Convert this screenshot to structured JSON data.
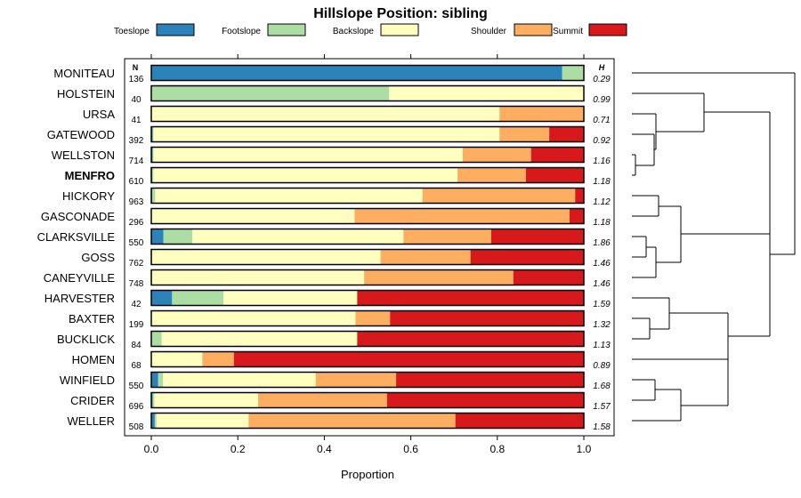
{
  "chart_data": {
    "type": "bar",
    "stacked": true,
    "orientation": "horizontal",
    "title": "Hillslope Position: sibling",
    "xlabel": "Proportion",
    "xlim": [
      0,
      1
    ],
    "xticks": [
      "0.0",
      "0.2",
      "0.4",
      "0.6",
      "0.8",
      "1.0"
    ],
    "xtick_values": [
      0,
      0.2,
      0.4,
      0.6,
      0.8,
      1.0
    ],
    "n_header": "N",
    "h_header": "H",
    "legend": [
      {
        "name": "Toeslope",
        "color": "#2b83ba"
      },
      {
        "name": "Footslope",
        "color": "#abdda4"
      },
      {
        "name": "Backslope",
        "color": "#ffffbf"
      },
      {
        "name": "Shoulder",
        "color": "#fdae61"
      },
      {
        "name": "Summit",
        "color": "#d7191c"
      }
    ],
    "rows": [
      {
        "label": "MONITEAU",
        "n": "136",
        "h": "0.29",
        "bold": false,
        "values": [
          0.95,
          0.05,
          0,
          0,
          0
        ]
      },
      {
        "label": "HOLSTEIN",
        "n": "40",
        "h": "0.99",
        "bold": false,
        "values": [
          0,
          0.55,
          0.45,
          0,
          0
        ]
      },
      {
        "label": "URSA",
        "n": "41",
        "h": "0.71",
        "bold": false,
        "values": [
          0,
          0,
          0.805,
          0.195,
          0
        ]
      },
      {
        "label": "GATEWOOD",
        "n": "392",
        "h": "0.92",
        "bold": false,
        "values": [
          0.003,
          0.002,
          0.8,
          0.115,
          0.08
        ]
      },
      {
        "label": "WELLSTON",
        "n": "714",
        "h": "1.16",
        "bold": false,
        "values": [
          0.003,
          0.002,
          0.715,
          0.158,
          0.122
        ]
      },
      {
        "label": "MENFRO",
        "n": "610",
        "h": "1.18",
        "bold": true,
        "values": [
          0.002,
          0.003,
          0.703,
          0.158,
          0.134
        ]
      },
      {
        "label": "HICKORY",
        "n": "963",
        "h": "1.12",
        "bold": false,
        "values": [
          0.002,
          0.007,
          0.618,
          0.353,
          0.02
        ]
      },
      {
        "label": "GASCONADE",
        "n": "296",
        "h": "1.18",
        "bold": false,
        "values": [
          0,
          0,
          0.47,
          0.497,
          0.033
        ]
      },
      {
        "label": "CLARKSVILLE",
        "n": "550",
        "h": "1.86",
        "bold": false,
        "values": [
          0.028,
          0.067,
          0.488,
          0.203,
          0.214
        ]
      },
      {
        "label": "GOSS",
        "n": "762",
        "h": "1.46",
        "bold": false,
        "values": [
          0,
          0.002,
          0.528,
          0.208,
          0.262
        ]
      },
      {
        "label": "CANEYVILLE",
        "n": "748",
        "h": "1.46",
        "bold": false,
        "values": [
          0,
          0.002,
          0.49,
          0.345,
          0.163
        ]
      },
      {
        "label": "HARVESTER",
        "n": "42",
        "h": "1.59",
        "bold": false,
        "values": [
          0.048,
          0.119,
          0.309,
          0,
          0.524
        ]
      },
      {
        "label": "BAXTER",
        "n": "199",
        "h": "1.32",
        "bold": false,
        "values": [
          0,
          0,
          0.472,
          0.08,
          0.448
        ]
      },
      {
        "label": "BUCKLICK",
        "n": "84",
        "h": "1.13",
        "bold": false,
        "values": [
          0,
          0.024,
          0.452,
          0,
          0.524
        ]
      },
      {
        "label": "HOMEN",
        "n": "68",
        "h": "0.89",
        "bold": false,
        "values": [
          0,
          0,
          0.118,
          0.073,
          0.809
        ]
      },
      {
        "label": "WINFIELD",
        "n": "550",
        "h": "1.68",
        "bold": false,
        "values": [
          0.016,
          0.011,
          0.353,
          0.186,
          0.434
        ]
      },
      {
        "label": "CRIDER",
        "n": "696",
        "h": "1.57",
        "bold": false,
        "values": [
          0.003,
          0.004,
          0.24,
          0.298,
          0.455
        ]
      },
      {
        "label": "WELLER",
        "n": "508",
        "h": "1.58",
        "bold": false,
        "values": [
          0.008,
          0.004,
          0.213,
          0.478,
          0.297
        ]
      }
    ]
  }
}
